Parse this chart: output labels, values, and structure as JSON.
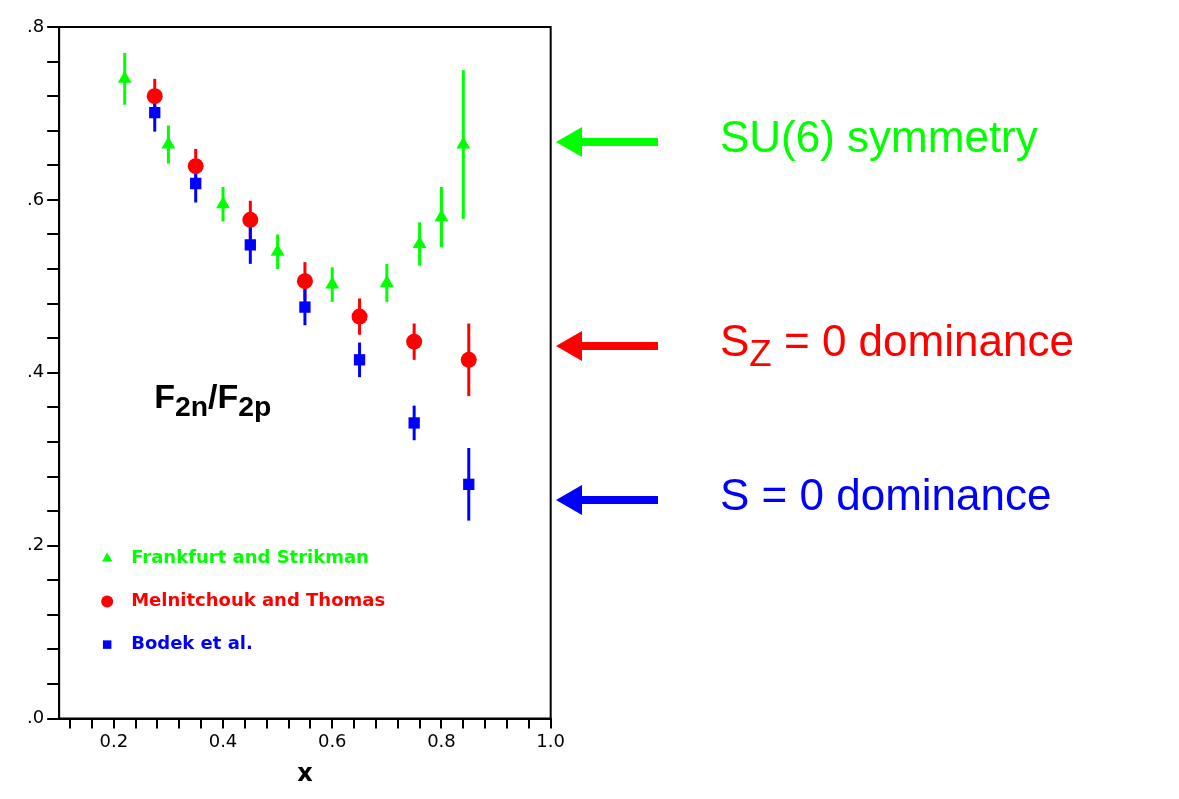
{
  "chart_data": {
    "type": "scatter",
    "xlabel": "x",
    "xlim": [
      0.1,
      1.0
    ],
    "ylim": [
      0,
      0.8
    ],
    "xticks": [
      {
        "value": 0.12,
        "label": null
      },
      {
        "value": 0.16,
        "label": null
      },
      0.2,
      {
        "value": 0.24,
        "label": null
      },
      {
        "value": 0.28,
        "label": null
      },
      {
        "value": 0.32,
        "label": null
      },
      {
        "value": 0.36,
        "label": null
      },
      0.4,
      {
        "value": 0.44,
        "label": null
      },
      {
        "value": 0.48,
        "label": null
      },
      {
        "value": 0.52,
        "label": null
      },
      {
        "value": 0.56,
        "label": null
      },
      0.6,
      {
        "value": 0.64,
        "label": null
      },
      {
        "value": 0.68,
        "label": null
      },
      {
        "value": 0.72,
        "label": null
      },
      {
        "value": 0.76,
        "label": null
      },
      0.8,
      {
        "value": 0.84,
        "label": null
      },
      {
        "value": 0.88,
        "label": null
      },
      {
        "value": 0.92,
        "label": null
      },
      {
        "value": 0.96,
        "label": null
      },
      {
        "value": 1.0,
        "label": "1.0"
      }
    ],
    "yticks": [
      {
        "value": 0,
        "label": ".0"
      },
      {
        "value": 0.04,
        "label": null
      },
      {
        "value": 0.08,
        "label": null
      },
      {
        "value": 0.12,
        "label": null
      },
      {
        "value": 0.16,
        "label": null
      },
      {
        "value": 0.2,
        "label": ".2"
      },
      {
        "value": 0.24,
        "label": null
      },
      {
        "value": 0.28,
        "label": null
      },
      {
        "value": 0.32,
        "label": null
      },
      {
        "value": 0.36,
        "label": null
      },
      {
        "value": 0.4,
        "label": ".4"
      },
      {
        "value": 0.44,
        "label": null
      },
      {
        "value": 0.48,
        "label": null
      },
      {
        "value": 0.52,
        "label": null
      },
      {
        "value": 0.56,
        "label": null
      },
      {
        "value": 0.6,
        "label": ".6"
      },
      {
        "value": 0.64,
        "label": null
      },
      {
        "value": 0.68,
        "label": null
      },
      {
        "value": 0.72,
        "label": null
      },
      {
        "value": 0.76,
        "label": null
      },
      {
        "value": 0.8,
        "label": ".8"
      }
    ],
    "grid": false,
    "legend": "bottom left",
    "series": [
      {
        "name": "Frankfurt and Strikman",
        "color": "#00ff00",
        "marker": "triangle",
        "x": [
          0.22,
          0.3,
          0.4,
          0.5,
          0.6,
          0.7,
          0.76,
          0.8,
          0.84
        ],
        "values": [
          0.74,
          0.664,
          0.595,
          0.54,
          0.502,
          0.504,
          0.549,
          0.58,
          0.664
        ],
        "errors": [
          0.03,
          0.022,
          0.02,
          0.02,
          0.02,
          0.022,
          0.025,
          0.035,
          0.086
        ]
      },
      {
        "name": "Melnitchouk and Thomas",
        "color": "#ff0000",
        "marker": "circle",
        "x": [
          0.275,
          0.35,
          0.45,
          0.55,
          0.65,
          0.75,
          0.85
        ],
        "values": [
          0.72,
          0.639,
          0.577,
          0.506,
          0.465,
          0.436,
          0.415
        ],
        "errors": [
          0.02,
          0.02,
          0.022,
          0.022,
          0.021,
          0.021,
          0.042
        ]
      },
      {
        "name": "Bodek et al.",
        "color": "#0000ff",
        "marker": "square",
        "x": [
          0.275,
          0.35,
          0.45,
          0.55,
          0.65,
          0.75,
          0.85
        ],
        "values": [
          0.701,
          0.619,
          0.548,
          0.476,
          0.415,
          0.342,
          0.271
        ],
        "errors": [
          0.022,
          0.022,
          0.022,
          0.021,
          0.02,
          0.02,
          0.042
        ]
      }
    ],
    "annotations": [
      "F$_{2n}$/F$_{2p}$",
      "SU(6) symmetry",
      "S$_{Z}$ = 0 dominance",
      "S = 0 dominance"
    ]
  }
}
